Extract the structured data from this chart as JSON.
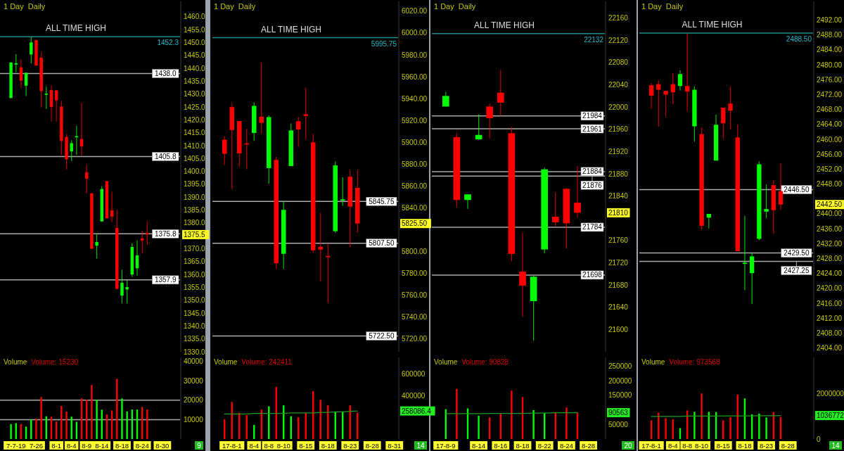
{
  "chart_data": [
    {
      "type": "candlestick",
      "title": "1 Day  Daily",
      "tick_labels": "y",
      "categories": [
        null,
        null,
        null,
        null,
        null,
        null,
        null,
        null,
        null,
        null,
        null,
        null,
        null,
        null,
        null,
        null,
        null,
        null,
        null,
        null,
        null,
        null,
        null,
        null,
        null,
        null,
        null,
        null,
        null,
        null,
        null,
        null,
        null,
        null
      ],
      "ohlc": [
        [
          1428.5,
          1442.3,
          1428.5,
          1442.3
        ],
        [
          1441.5,
          1445.5,
          1438.5,
          1442.0
        ],
        [
          1440.4,
          1443.5,
          1432.3,
          1435.2
        ],
        [
          1433.3,
          1438.3,
          1429.3,
          1438.3
        ],
        [
          1445.4,
          1452.2,
          1441.9,
          1450.1
        ],
        [
          1451.0,
          1451.0,
          1441.1,
          1441.1
        ],
        [
          1444.2,
          1446.3,
          1424.8,
          1431.2
        ],
        [
          1429.8,
          1432.9,
          1424.3,
          1430.2
        ],
        [
          1431.6,
          1433.4,
          1419.4,
          1425.0
        ],
        [
          1431.5,
          1431.5,
          1419.4,
          1427.6
        ],
        [
          1425.2,
          1427.4,
          1406.4,
          1411.8
        ],
        [
          1413.4,
          1414.6,
          1400.7,
          1404.7
        ],
        [
          1407.8,
          1412.1,
          1404.1,
          1411.0
        ],
        [
          1413.5,
          1417.7,
          1406.4,
          1413.7
        ],
        [
          1412.6,
          1426.6,
          1406.1,
          1409.7
        ],
        [
          1399.7,
          1402.5,
          1391.5,
          1397.2
        ],
        [
          1391.5,
          1391.5,
          1370.0,
          1370.0
        ],
        [
          1371.2,
          1375.9,
          1366.2,
          1372.6
        ],
        [
          1380.6,
          1394.3,
          1380.6,
          1393.2
        ],
        [
          1396.2,
          1396.4,
          1381.8,
          1381.8
        ],
        [
          1384.9,
          1392.1,
          1380.4,
          1382.5
        ],
        [
          1378.1,
          1385.2,
          1354.4,
          1354.4
        ],
        [
          1351.8,
          1361.9,
          1348.8,
          1356.8
        ],
        [
          1354.2,
          1357.8,
          1348.8,
          1355.1
        ],
        [
          1360.0,
          1372.1,
          1359.1,
          1370.7
        ],
        [
          1362.4,
          1373.2,
          1359.4,
          1367.4
        ],
        [
          1374.0,
          1377.0,
          1368.1,
          1373.2
        ],
        [
          1376.1,
          1380.6,
          1371.6,
          1375.5
        ],
        null,
        null,
        null,
        null,
        null,
        null
      ],
      "colors": [
        "#00ff00",
        "#00ff00",
        "#ff0000",
        "#00ff00",
        "#00ff00",
        "#ff0000",
        "#ff0000",
        "#00ff00",
        "#ff0000",
        "#ff0000",
        "#ff0000",
        "#ff0000",
        "#00ff00",
        "#00ff00",
        "#ff0000",
        "#ff0000",
        "#ff0000",
        "#00ff00",
        "#00ff00",
        "#ff0000",
        "#ff0000",
        "#ff0000",
        "#00ff00",
        "#00ff00",
        "#00ff00",
        "#00ff00",
        "#ff0000",
        "#ff0000",
        null,
        null,
        null,
        null,
        null,
        null
      ],
      "ylim": [
        1330,
        1466
      ],
      "yticks": [
        {
          "value": 1330,
          "label": "1330.0"
        },
        {
          "value": 1335,
          "label": "1335.0"
        },
        {
          "value": 1340,
          "label": "1340.0"
        },
        {
          "value": 1345,
          "label": "1345.0"
        },
        {
          "value": 1350,
          "label": "1350.0"
        },
        {
          "value": 1355,
          "label": "1355.0"
        },
        {
          "value": 1360,
          "label": "1360.0"
        },
        {
          "value": 1365,
          "label": "1365.0"
        },
        {
          "value": 1370,
          "label": "1370.0"
        },
        {
          "value": 1380,
          "label": "1380.0"
        },
        {
          "value": 1385,
          "label": "1385.0"
        },
        {
          "value": 1390,
          "label": "1390.0"
        },
        {
          "value": 1395,
          "label": "1395.0"
        },
        {
          "value": 1400,
          "label": "1400.0"
        },
        {
          "value": 1405,
          "label": "1405.0"
        },
        {
          "value": 1410,
          "label": "1410.0"
        },
        {
          "value": 1415,
          "label": "1415.0"
        },
        {
          "value": 1420,
          "label": "1420.0"
        },
        {
          "value": 1425,
          "label": "1425.0"
        },
        {
          "value": 1430,
          "label": "1430.0"
        },
        {
          "value": 1435,
          "label": "1435.0"
        },
        {
          "value": 1440,
          "label": "1440.0"
        },
        {
          "value": 1445,
          "label": "1445.0"
        },
        {
          "value": 1450,
          "label": "1450.0"
        },
        {
          "value": 1455,
          "label": "1455.0"
        },
        {
          "value": 1460,
          "label": "1460.0"
        }
      ],
      "ref_lines": [
        {
          "axis": "y",
          "value": 1452.3,
          "label": "ALL TIME HIGH",
          "color": "#1e8c8c"
        },
        {
          "axis": "y",
          "value": 1438.0,
          "label": "1438.0",
          "color": "#aaaaaa"
        },
        {
          "axis": "y",
          "value": 1405.8,
          "label": "1405.8",
          "color": "#aaaaaa"
        },
        {
          "axis": "y",
          "value": 1375.8,
          "label": "1375.8",
          "color": "#aaaaaa"
        },
        {
          "axis": "y",
          "value": 1357.9,
          "label": "1357.9",
          "color": "#aaaaaa"
        }
      ],
      "annotations": [
        {
          "text": "1452.3",
          "y": 1452.3
        },
        "1375.5"
      ]
    },
    {
      "type": "bar",
      "title": "Volume",
      "subtitle": "Volume: 15230",
      "categories": [
        null,
        "7-7-19",
        null,
        null,
        null,
        "7-26",
        null,
        null,
        null,
        "8-1",
        null,
        null,
        "8-4",
        null,
        null,
        "8-9",
        null,
        null,
        "8-14",
        null,
        null,
        null,
        "8-18",
        null,
        null,
        null,
        "8-24",
        null,
        null,
        null,
        "8-30",
        null,
        null,
        null
      ],
      "series": [
        {
          "type": "bar",
          "values": [
            7700,
            8200,
            7700,
            6400,
            10000,
            10500,
            21600,
            11700,
            11500,
            9000,
            17000,
            14100,
            11500,
            8900,
            20900,
            20200,
            27800,
            20200,
            15100,
            12700,
            14700,
            31000,
            20900,
            14200,
            15200,
            15200,
            16500,
            15230,
            null,
            null,
            null,
            null,
            null,
            null
          ],
          "colors": [
            "#00ff00",
            "#00ff00",
            "#ff0000",
            "#00ff00",
            "#00ff00",
            "#ff0000",
            "#ff0000",
            "#00ff00",
            "#ff0000",
            "#ff0000",
            "#ff0000",
            "#ff0000",
            "#00ff00",
            "#00ff00",
            "#ff0000",
            "#ff0000",
            "#ff0000",
            "#00ff00",
            "#00ff00",
            "#ff0000",
            "#ff0000",
            "#ff0000",
            "#00ff00",
            "#00ff00",
            "#00ff00",
            "#00ff00",
            "#ff0000",
            "#ff0000",
            null,
            null,
            null,
            null,
            null,
            null
          ]
        }
      ],
      "ylim": [
        0,
        42000
      ],
      "yticks": [
        10000,
        20000,
        30000,
        40000
      ],
      "ref_lines": [
        {
          "axis": "y",
          "value": 10000,
          "color": "#aaaaaa"
        },
        {
          "axis": "y",
          "value": 20000,
          "color": "#aaaaaa"
        }
      ],
      "annotations": [
        "9"
      ]
    },
    {
      "type": "candlestick",
      "title": "1 Day  Daily",
      "tick_labels": "y",
      "categories": [
        null,
        null,
        null,
        null,
        null,
        null,
        null,
        null,
        null,
        null,
        null,
        null,
        null,
        null,
        null,
        null,
        null,
        null,
        null,
        null,
        null,
        null,
        null,
        null
      ],
      "ohlc": [
        [
          5902.3,
          5905.5,
          5879.1,
          5889.4
        ],
        [
          5932.2,
          5935.9,
          5857.1,
          5911.2
        ],
        [
          5919.4,
          5919.4,
          5877.6,
          5889.8
        ],
        [
          5899.0,
          5912.3,
          5875.3,
          5898.6
        ],
        [
          5908.5,
          5936.5,
          5901.2,
          5933.3
        ],
        [
          5923.4,
          5972.9,
          5908.0,
          5917.7
        ],
        [
          5876.3,
          5924.5,
          5862.0,
          5923.0
        ],
        [
          5883.8,
          5886.6,
          5783.9,
          5789.2
        ],
        [
          5797.8,
          5845.75,
          5783.9,
          5838.0
        ],
        [
          5878.1,
          5917.2,
          5878.1,
          5910.8
        ],
        [
          5919.2,
          5923.4,
          5895.8,
          5911.7
        ],
        [
          5925.6,
          5949.8,
          5902.7,
          5924.1
        ],
        [
          5899.9,
          5907.6,
          5798.9,
          5801.0
        ],
        [
          5804.2,
          5835.2,
          5772.7,
          5801.6
        ],
        [
          5795.8,
          5807.5,
          5752.4,
          5795.6
        ],
        [
          5818.5,
          5882.3,
          5817.0,
          5878.7
        ],
        [
          5847.2,
          5867.8,
          5841.7,
          5847.6
        ],
        [
          5868.4,
          5874.8,
          5803.8,
          5841.0
        ],
        [
          5858.2,
          5874.4,
          5817.0,
          5825.5
        ],
        null,
        null,
        null,
        null,
        null
      ],
      "colors": [
        "#ff0000",
        "#ff0000",
        "#ff0000",
        "#ff0000",
        "#00ff00",
        "#ff0000",
        "#00ff00",
        "#ff0000",
        "#00ff00",
        "#00ff00",
        "#ff0000",
        "#ff0000",
        "#ff0000",
        "#ff0000",
        "#ff0000",
        "#00ff00",
        "#00ff00",
        "#ff0000",
        "#ff0000",
        null,
        null,
        null,
        null,
        null
      ],
      "ylim": [
        5708,
        6029
      ],
      "yticks": [
        {
          "value": 5720,
          "label": "5720.00"
        },
        {
          "value": 5740,
          "label": "5740.00"
        },
        {
          "value": 5760,
          "label": "5760.00"
        },
        {
          "value": 5780,
          "label": "5780.00"
        },
        {
          "value": 5800,
          "label": "5800.00"
        },
        {
          "value": 5840,
          "label": "5840.00"
        },
        {
          "value": 5860,
          "label": "5860.00"
        },
        {
          "value": 5880,
          "label": "5880.00"
        },
        {
          "value": 5900,
          "label": "5900.00"
        },
        {
          "value": 5920,
          "label": "5920.00"
        },
        {
          "value": 5940,
          "label": "5940.00"
        },
        {
          "value": 5960,
          "label": "5960.00"
        },
        {
          "value": 5980,
          "label": "5980.00"
        },
        {
          "value": 6000,
          "label": "6000.00"
        },
        {
          "value": 6020,
          "label": "6020.00"
        }
      ],
      "ref_lines": [
        {
          "axis": "y",
          "value": 5995.75,
          "label": "ALL TIME HIGH",
          "color": "#1e8c8c"
        },
        {
          "axis": "y",
          "value": 5845.75,
          "label": "5845.75",
          "color": "#aaaaaa"
        },
        {
          "axis": "y",
          "value": 5807.5,
          "label": "5807.50",
          "color": "#aaaaaa"
        },
        {
          "axis": "y",
          "value": 5722.5,
          "label": "5722.50",
          "color": "#aaaaaa"
        }
      ],
      "annotations": [
        {
          "text": "5995.75",
          "y": 5995.75
        },
        "5825.50"
      ]
    },
    {
      "type": "bar",
      "title": "Volume",
      "subtitle": "Volume: 242411",
      "categories": [
        null,
        "17-8-1",
        null,
        null,
        "8-4",
        null,
        "8-8",
        null,
        "8-10",
        null,
        null,
        "8-15",
        null,
        null,
        "8-18",
        null,
        null,
        "8-23",
        null,
        null,
        "8-28",
        null,
        null,
        "8-31"
      ],
      "series": [
        {
          "type": "bar",
          "values": [
            180000,
            340000,
            240000,
            220000,
            130000,
            270000,
            300000,
            480000,
            310000,
            210000,
            200000,
            240000,
            440000,
            360000,
            310000,
            250000,
            250000,
            310000,
            242411,
            null,
            null,
            null,
            null,
            null
          ],
          "colors": [
            "#ff0000",
            "#ff0000",
            "#ff0000",
            "#ff0000",
            "#00ff00",
            "#ff0000",
            "#00ff00",
            "#ff0000",
            "#00ff00",
            "#00ff00",
            "#ff0000",
            "#ff0000",
            "#ff0000",
            "#ff0000",
            "#ff0000",
            "#00ff00",
            "#00ff00",
            "#ff0000",
            "#ff0000",
            null,
            null,
            null,
            null,
            null
          ]
        },
        {
          "type": "line",
          "color": "#1a9a1a",
          "values": [
            230000,
            230000,
            230000,
            230000,
            235000,
            235000,
            235000,
            235000,
            235000,
            240000,
            240000,
            240000,
            240000,
            245000,
            245000,
            250000,
            250000,
            255000,
            258086.4,
            null,
            null,
            null,
            null,
            null
          ]
        }
      ],
      "ylim": [
        0,
        750000
      ],
      "yticks": [
        400000,
        600000
      ],
      "annotations": [
        "258086.4",
        "14"
      ]
    },
    {
      "type": "candlestick",
      "title": "1 Day  Daily",
      "tick_labels": "y",
      "categories": [
        null,
        null,
        null,
        null,
        null,
        null,
        null,
        null,
        null,
        null,
        null,
        null,
        null,
        null,
        null
      ],
      "ohlc": [
        [
          22001,
          22027,
          22001,
          22020
        ],
        [
          21946,
          21953,
          21821,
          21833
        ],
        [
          21833,
          21843,
          21817,
          21843
        ],
        [
          21942,
          21987,
          21941,
          21950
        ],
        [
          22001,
          22006,
          21943,
          21980
        ],
        [
          22026,
          22067,
          21984,
          22008
        ],
        [
          21953,
          21964,
          21723,
          21736
        ],
        [
          21704,
          21774,
          21623,
          21679
        ],
        [
          21651,
          21697,
          21580,
          21695
        ],
        [
          21744,
          21891,
          21737,
          21888
        ],
        [
          21803,
          21847,
          21786,
          21793
        ],
        [
          21853,
          21854,
          21746,
          21791
        ],
        [
          21828,
          21894,
          21801,
          21810
        ],
        null,
        null
      ],
      "colors": [
        "#00ff00",
        "#ff0000",
        "#00ff00",
        "#00ff00",
        "#ff0000",
        "#ff0000",
        "#ff0000",
        "#ff0000",
        "#00ff00",
        "#00ff00",
        "#ff0000",
        "#ff0000",
        "#ff0000",
        null,
        null
      ],
      "ylim": [
        21560,
        22190
      ],
      "yticks": [
        21600,
        21640,
        21680,
        21720,
        21760,
        21840,
        21880,
        21920,
        21960,
        22000,
        22040,
        22080,
        22120,
        22160
      ],
      "ref_lines": [
        {
          "axis": "y",
          "value": 22132,
          "label": "ALL TIME HIGH",
          "color": "#1e8c8c"
        },
        {
          "axis": "y",
          "value": 21984,
          "label": "21984",
          "color": "#aaaaaa"
        },
        {
          "axis": "y",
          "value": 21961,
          "label": "21961",
          "color": "#aaaaaa"
        },
        {
          "axis": "y",
          "value": 21884,
          "label": "21884",
          "color": "#aaaaaa"
        },
        {
          "axis": "y",
          "value": 21876,
          "label": "21876",
          "color": "#aaaaaa"
        },
        {
          "axis": "y",
          "value": 21784,
          "label": "21784",
          "color": "#aaaaaa"
        },
        {
          "axis": "y",
          "value": 21698,
          "label": "21698",
          "color": "#aaaaaa"
        }
      ],
      "annotations": [
        {
          "text": "22132",
          "y": 22132
        },
        "21810"
      ]
    },
    {
      "type": "bar",
      "title": "Volume",
      "subtitle": "Volume: 90828",
      "categories": [
        "17-8-9",
        null,
        null,
        "8-14",
        null,
        "8-16",
        null,
        "8-18",
        null,
        "8-22",
        null,
        "8-24",
        null,
        "8-28",
        null
      ],
      "series": [
        {
          "type": "bar",
          "values": [
            102000,
            172000,
            105000,
            80000,
            74000,
            86000,
            166000,
            144000,
            99000,
            90000,
            92000,
            108000,
            90828,
            null,
            null
          ],
          "colors": [
            "#00ff00",
            "#ff0000",
            "#00ff00",
            "#00ff00",
            "#ff0000",
            "#ff0000",
            "#ff0000",
            "#ff0000",
            "#00ff00",
            "#00ff00",
            "#ff0000",
            "#ff0000",
            "#ff0000",
            null,
            null
          ]
        },
        {
          "type": "line",
          "color": "#1a9a1a",
          "values": [
            87000,
            87000,
            87000,
            87000,
            88000,
            88000,
            88000,
            88000,
            89000,
            89000,
            90000,
            90000,
            90563,
            null,
            null
          ]
        }
      ],
      "ylim": [
        0,
        280000
      ],
      "yticks": [
        50000,
        150000,
        200000,
        250000
      ],
      "annotations": [
        "90563",
        "20"
      ]
    },
    {
      "type": "candlestick",
      "title": "1 Day  Daily",
      "tick_labels": "y",
      "categories": [
        null,
        null,
        null,
        null,
        null,
        null,
        null,
        null,
        null,
        null,
        null,
        null,
        null,
        null,
        null,
        null,
        null,
        null,
        null,
        null,
        null,
        null,
        null
      ],
      "ohlc": [
        [
          2474.5,
          2475.1,
          2468.2,
          2471.7
        ],
        [
          2474.8,
          2475.8,
          2463.4,
          2473.3
        ],
        [
          2473.0,
          2473.0,
          2466.1,
          2472.0
        ],
        [
          2474.8,
          2477.8,
          2469.4,
          2472.6
        ],
        [
          2474.3,
          2478.5,
          2473.1,
          2477.5
        ],
        [
          2474.3,
          2488.3,
          2467.6,
          2472.8
        ],
        [
          2463.5,
          2474.2,
          2459.4,
          2473.3
        ],
        [
          2461.4,
          2463.2,
          2435.8,
          2436.8
        ],
        [
          2439.0,
          2440.0,
          2436.1,
          2440.0
        ],
        [
          2454.3,
          2466.6,
          2454.3,
          2463.9
        ],
        [
          2468.5,
          2468.5,
          2460.2,
          2464.3
        ],
        [
          2469.6,
          2474.2,
          2462.6,
          2467.7
        ],
        [
          2460.5,
          2464.0,
          2430.0,
          2430.0
        ],
        [
          2426.8,
          2439.5,
          2419.5,
          2426.9
        ],
        [
          2424.1,
          2429.5,
          2415.8,
          2428.6
        ],
        [
          2433.3,
          2454.1,
          2432.9,
          2453.3
        ],
        [
          2440.6,
          2447.9,
          2438.9,
          2441.3
        ],
        [
          2447.7,
          2449.1,
          2434.6,
          2441.0
        ],
        [
          2446.1,
          2453.6,
          2441.1,
          2442.5
        ],
        null,
        null,
        null,
        null
      ],
      "colors": [
        "#ff0000",
        "#ff0000",
        "#ff0000",
        "#ff0000",
        "#00ff00",
        "#ff0000",
        "#00ff00",
        "#ff0000",
        "#00ff00",
        "#00ff00",
        "#ff0000",
        "#ff0000",
        "#ff0000",
        "#00ff00",
        "#00ff00",
        "#00ff00",
        "#00ff00",
        "#ff0000",
        "#ff0000",
        null,
        null,
        null,
        null
      ],
      "ylim": [
        2403,
        2497
      ],
      "yticks": [
        {
          "value": 2404,
          "label": "2404.00"
        },
        {
          "value": 2408,
          "label": "2408.00"
        },
        {
          "value": 2412,
          "label": "2412.00"
        },
        {
          "value": 2416,
          "label": "2416.00"
        },
        {
          "value": 2420,
          "label": "2420.00"
        },
        {
          "value": 2424,
          "label": "2424.00"
        },
        {
          "value": 2428,
          "label": "2428.00"
        },
        {
          "value": 2432,
          "label": "2432.00"
        },
        {
          "value": 2436,
          "label": "2436.00"
        },
        {
          "value": 2440,
          "label": "2440.00"
        },
        {
          "value": 2448,
          "label": "2448.00"
        },
        {
          "value": 2452,
          "label": "2452.00"
        },
        {
          "value": 2456,
          "label": "2456.00"
        },
        {
          "value": 2460,
          "label": "2460.00"
        },
        {
          "value": 2464,
          "label": "2464.00"
        },
        {
          "value": 2468,
          "label": "2468.00"
        },
        {
          "value": 2472,
          "label": "2472.00"
        },
        {
          "value": 2476,
          "label": "2476.00"
        },
        {
          "value": 2480,
          "label": "2480.00"
        },
        {
          "value": 2484,
          "label": "2484.00"
        },
        {
          "value": 2488,
          "label": "2488.00"
        },
        {
          "value": 2492,
          "label": "2492.00"
        }
      ],
      "ref_lines": [
        {
          "axis": "y",
          "value": 2488.5,
          "label": "ALL TIME HIGH",
          "color": "#1e8c8c"
        },
        {
          "axis": "y",
          "value": 2446.5,
          "label": "2446.50",
          "color": "#aaaaaa"
        },
        {
          "axis": "y",
          "value": 2429.5,
          "label": "2429.50",
          "color": "#aaaaaa"
        },
        {
          "axis": "y",
          "value": 2427.25,
          "label": "2427.25",
          "color": "#aaaaaa"
        }
      ],
      "annotations": [
        {
          "text": "2488.50",
          "y": 2488.5
        },
        "2442.50"
      ]
    },
    {
      "type": "bar",
      "title": "Volume",
      "subtitle": "Volume: 973568",
      "categories": [
        "17-8-1",
        null,
        null,
        "8-4",
        null,
        "8-8",
        null,
        "8-10",
        null,
        null,
        "8-15",
        null,
        null,
        "8-18",
        null,
        null,
        "8-23",
        null,
        null,
        "8-28",
        null,
        null,
        null
      ],
      "series": [
        {
          "type": "bar",
          "values": [
            820000,
            1160000,
            920000,
            870000,
            480000,
            1260000,
            1200000,
            2010000,
            1200000,
            1190000,
            820000,
            960000,
            1960000,
            1790000,
            1090000,
            1120000,
            950000,
            1190000,
            973568,
            null,
            null,
            null,
            null
          ],
          "colors": [
            "#ff0000",
            "#ff0000",
            "#ff0000",
            "#ff0000",
            "#00ff00",
            "#ff0000",
            "#00ff00",
            "#ff0000",
            "#00ff00",
            "#00ff00",
            "#ff0000",
            "#ff0000",
            "#ff0000",
            "#00ff00",
            "#00ff00",
            "#00ff00",
            "#00ff00",
            "#ff0000",
            "#ff0000",
            null,
            null,
            null,
            null
          ]
        },
        {
          "type": "line",
          "color": "#1a9a1a",
          "values": [
            1000000,
            1000000,
            1000000,
            1000000,
            1000000,
            1010000,
            1010000,
            1010000,
            1010000,
            1010000,
            1020000,
            1020000,
            1020000,
            1020000,
            1020000,
            1030000,
            1030000,
            1030000,
            1036772,
            null,
            null,
            null,
            null
          ]
        }
      ],
      "ylim": [
        0,
        3600000
      ],
      "yticks": [
        0,
        2000000
      ],
      "annotations": [
        "1036772",
        "14"
      ]
    }
  ]
}
